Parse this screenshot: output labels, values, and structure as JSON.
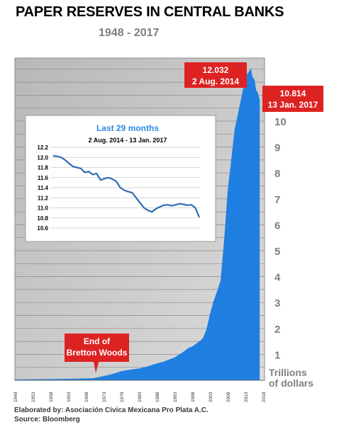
{
  "title": "PAPER RESERVES IN CENTRAL BANKS",
  "subtitle": "1948 - 2017",
  "footer": {
    "elaborated": "Elaborated by:  Asociación Civica Mexicana Pro Plata A.C.",
    "source": "Source: Bloomberg"
  },
  "colors": {
    "area": "#1f7fe0",
    "callout": "#dd2222",
    "inset_line": "#2e6db4",
    "plot_bg": "#c0c0c0",
    "inset_title": "#2a8ae6"
  },
  "chart_data": [
    {
      "type": "area",
      "xlim": [
        1948,
        2017
      ],
      "ylim": [
        0,
        11.5
      ],
      "x_ticks": [
        1948,
        1953,
        1958,
        1963,
        1968,
        1973,
        1978,
        1983,
        1988,
        1993,
        1998,
        2003,
        2008,
        2013,
        2018
      ],
      "y_ticks": [
        1,
        2,
        3,
        4,
        5,
        6,
        7,
        8,
        9,
        10
      ],
      "y_tick_labels": [
        "1",
        "2",
        "3",
        "4",
        "5",
        "6",
        "7",
        "8",
        "9",
        "10"
      ],
      "ylabel_line1": "Trillions",
      "ylabel_line2": "of dollars",
      "grid": true,
      "series": [
        {
          "x": [
            1948,
            1955,
            1960,
            1965,
            1970,
            1971,
            1973,
            1975,
            1978,
            1980,
            1983,
            1985,
            1988,
            1990,
            1993,
            1995,
            1997,
            1998,
            2000,
            2001,
            2002,
            2003,
            2004,
            2005,
            2006,
            2007,
            2008,
            2009,
            2010,
            2011,
            2012,
            2013,
            2014.58,
            2015,
            2015.6,
            2016,
            2016.5,
            2017.04
          ],
          "values": [
            0.03,
            0.04,
            0.05,
            0.06,
            0.08,
            0.1,
            0.16,
            0.22,
            0.35,
            0.4,
            0.46,
            0.52,
            0.65,
            0.72,
            0.88,
            1.05,
            1.25,
            1.3,
            1.5,
            1.62,
            1.95,
            2.55,
            3.05,
            3.42,
            3.85,
            5.4,
            7.3,
            8.5,
            9.7,
            10.35,
            11.0,
            11.7,
            12.032,
            11.7,
            11.6,
            11.2,
            11.1,
            10.814
          ]
        }
      ],
      "annotations": [
        {
          "lines": [
            "12.032",
            "2 Aug. 2014"
          ],
          "x": 2014.58,
          "y": 12.032
        },
        {
          "lines": [
            "10.814",
            "13 Jan. 2017"
          ],
          "x": 2017.04,
          "y": 10.814
        },
        {
          "lines": [
            "End of",
            "Bretton Woods"
          ],
          "x": 1971,
          "y": 0.1
        }
      ]
    },
    {
      "type": "line",
      "title": "Last 29 months",
      "subtitle": "2 Aug. 2014 - 13 Jan. 2017",
      "ylim": [
        10.6,
        12.2
      ],
      "y_ticks": [
        "10.6",
        "10.8",
        "11.0",
        "11.2",
        "11.4",
        "11.6",
        "11.8",
        "12.0",
        "12.2"
      ],
      "grid": true,
      "series": [
        {
          "values": [
            12.032,
            12.02,
            12.0,
            11.95,
            11.88,
            11.82,
            11.8,
            11.78,
            11.7,
            11.72,
            11.66,
            11.68,
            11.55,
            11.58,
            11.6,
            11.57,
            11.52,
            11.4,
            11.35,
            11.32,
            11.3,
            11.2,
            11.1,
            11.0,
            10.95,
            10.92,
            10.98,
            11.02,
            11.05,
            11.06,
            11.04,
            11.06,
            11.08,
            11.07,
            11.05,
            11.06,
            11.0,
            10.814
          ]
        }
      ]
    }
  ]
}
